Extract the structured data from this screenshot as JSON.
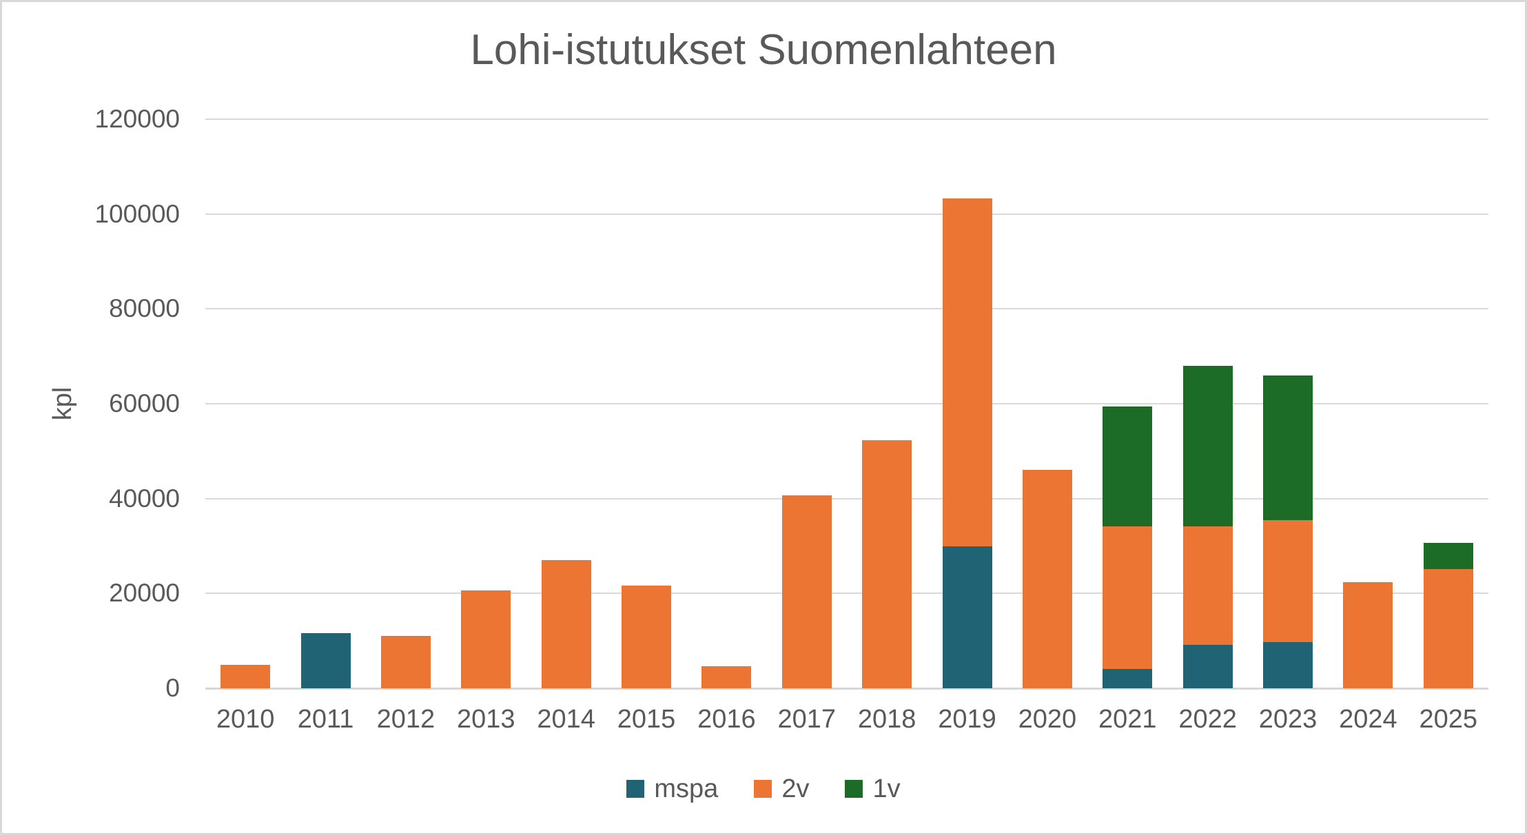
{
  "chart_data": {
    "type": "bar",
    "stacked": true,
    "title": "Lohi-istutukset Suomenlahteen",
    "xlabel": "",
    "ylabel": "kpl",
    "categories": [
      "2010",
      "2011",
      "2012",
      "2013",
      "2014",
      "2015",
      "2016",
      "2017",
      "2018",
      "2019",
      "2020",
      "2021",
      "2022",
      "2023",
      "2024",
      "2025"
    ],
    "series": [
      {
        "name": "mspa",
        "color": "#1F6374",
        "values": [
          0,
          11700,
          0,
          0,
          0,
          0,
          0,
          0,
          0,
          29900,
          0,
          4100,
          9200,
          9700,
          0,
          0
        ]
      },
      {
        "name": "2v",
        "color": "#ED7534",
        "values": [
          4900,
          0,
          11000,
          20600,
          27100,
          21600,
          4600,
          40700,
          52300,
          73400,
          46000,
          30000,
          25000,
          25700,
          22400,
          25200
        ]
      },
      {
        "name": "1v",
        "color": "#1C6B27",
        "values": [
          0,
          0,
          0,
          0,
          0,
          0,
          0,
          0,
          0,
          0,
          0,
          25400,
          33800,
          30500,
          0,
          5500
        ]
      }
    ],
    "ylim": [
      0,
      120000
    ],
    "ytick_step": 20000,
    "ytick_labels": [
      "0",
      "20000",
      "40000",
      "60000",
      "80000",
      "100000",
      "120000"
    ],
    "grid": true,
    "legend_position": "bottom"
  },
  "style": {
    "text_color": "#595959",
    "gridline_color": "#d9d9d9",
    "border_color": "#d8d8d8",
    "background": "#ffffff"
  }
}
